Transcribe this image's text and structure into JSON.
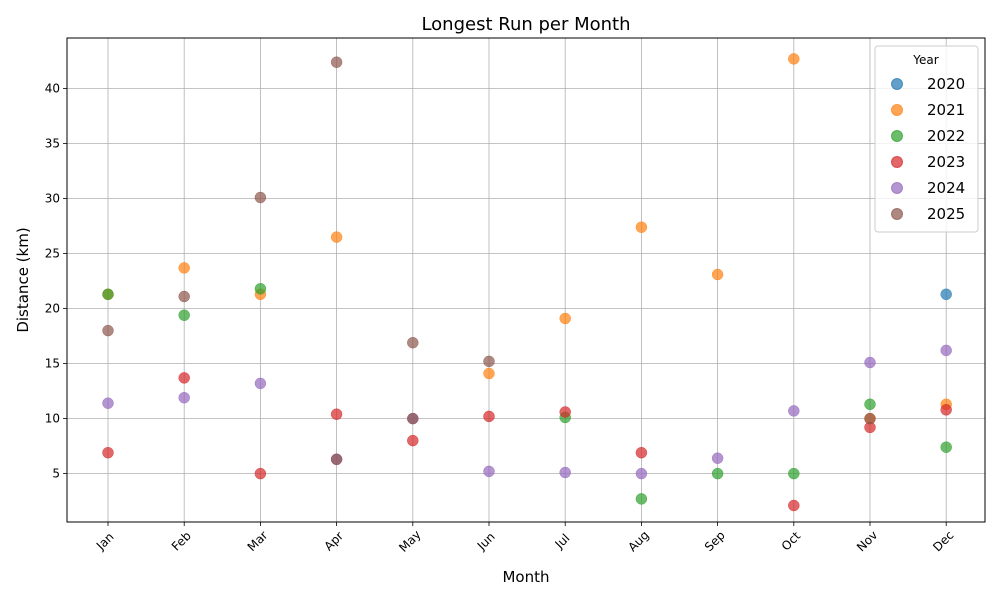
{
  "chart_data": {
    "type": "scatter",
    "title": "Longest Run per Month",
    "xlabel": "Month",
    "ylabel": "Distance (km)",
    "categories": [
      "Jan",
      "Feb",
      "Mar",
      "Apr",
      "May",
      "Jun",
      "Jul",
      "Aug",
      "Sep",
      "Oct",
      "Nov",
      "Dec"
    ],
    "ylim": [
      0.6,
      44.6
    ],
    "yticks": [
      5,
      10,
      15,
      20,
      25,
      30,
      35,
      40
    ],
    "grid": true,
    "legend": {
      "title": "Year",
      "placement": "top-right"
    },
    "series": [
      {
        "name": "2020",
        "color": "#1f77b4",
        "points": [
          [
            "Dec",
            21.3
          ]
        ]
      },
      {
        "name": "2021",
        "color": "#ff7f0e",
        "points": [
          [
            "Jan",
            21.3
          ],
          [
            "Feb",
            23.7
          ],
          [
            "Mar",
            21.3
          ],
          [
            "Apr",
            26.5
          ],
          [
            "Jun",
            14.1
          ],
          [
            "Jul",
            19.1
          ],
          [
            "Aug",
            27.4
          ],
          [
            "Sep",
            23.1
          ],
          [
            "Oct",
            42.7
          ],
          [
            "Nov",
            10.0
          ],
          [
            "Dec",
            11.3
          ]
        ]
      },
      {
        "name": "2022",
        "color": "#2ca02c",
        "points": [
          [
            "Jan",
            21.3
          ],
          [
            "Feb",
            19.4
          ],
          [
            "Mar",
            21.8
          ],
          [
            "Jul",
            10.1
          ],
          [
            "Aug",
            2.7
          ],
          [
            "Sep",
            5.0
          ],
          [
            "Oct",
            5.0
          ],
          [
            "Nov",
            11.3
          ],
          [
            "Dec",
            7.4
          ]
        ]
      },
      {
        "name": "2023",
        "color": "#d62728",
        "points": [
          [
            "Jan",
            6.9
          ],
          [
            "Feb",
            13.7
          ],
          [
            "Mar",
            5.0
          ],
          [
            "Apr",
            10.4
          ],
          [
            "May",
            8.0
          ],
          [
            "Jun",
            10.2
          ],
          [
            "Jul",
            10.6
          ],
          [
            "Aug",
            6.9
          ],
          [
            "Oct",
            2.1
          ],
          [
            "Nov",
            9.2
          ],
          [
            "Dec",
            10.8
          ]
        ]
      },
      {
        "name": "2024",
        "color": "#9467bd",
        "points": [
          [
            "Jan",
            11.4
          ],
          [
            "Feb",
            11.9
          ],
          [
            "Mar",
            13.2
          ],
          [
            "Apr",
            6.3
          ],
          [
            "May",
            10.0
          ],
          [
            "Jun",
            5.2
          ],
          [
            "Jul",
            5.1
          ],
          [
            "Aug",
            5.0
          ],
          [
            "Sep",
            6.4
          ],
          [
            "Oct",
            10.7
          ],
          [
            "Nov",
            15.1
          ],
          [
            "Dec",
            16.2
          ]
        ]
      },
      {
        "name": "2025",
        "color": "#8c564b",
        "points": [
          [
            "Jan",
            18.0
          ],
          [
            "Feb",
            21.1
          ],
          [
            "Mar",
            30.1
          ],
          [
            "Apr",
            42.4
          ],
          [
            "May",
            16.9
          ],
          [
            "Jun",
            15.2
          ],
          [
            "Apr",
            6.3
          ],
          [
            "May",
            10.0
          ],
          [
            "Nov",
            10.0
          ]
        ]
      }
    ]
  }
}
